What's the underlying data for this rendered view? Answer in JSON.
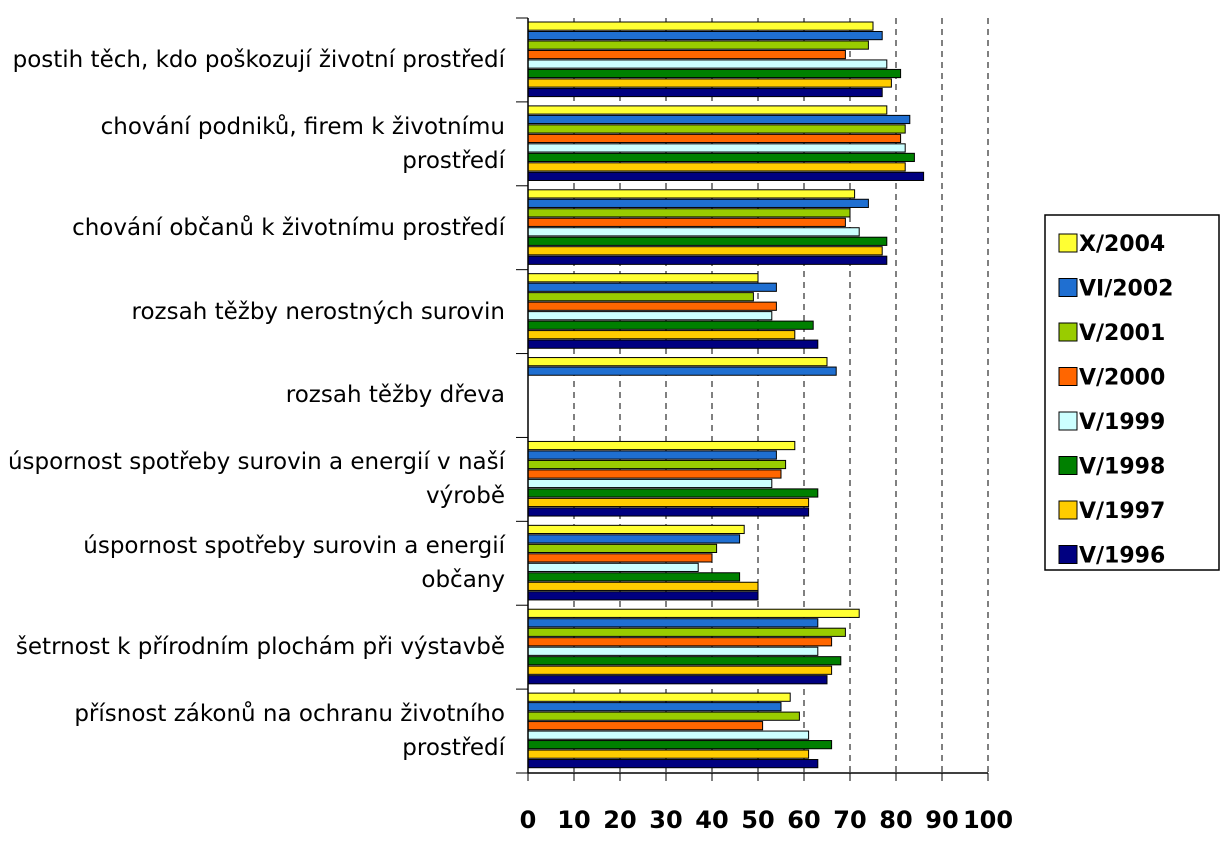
{
  "chart_data": {
    "type": "bar",
    "orientation": "horizontal",
    "categories": [
      "postih těch, kdo poškozují životní prostředí",
      "chování podniků, firem k životnímu prostředí",
      "chování občanů k životnímu prostředí",
      "rozsah těžby nerostných surovin",
      "rozsah těžby dřeva",
      "úspornost spotřeby surovin a energií v naší výrobě",
      "úspornost spotřeby surovin a energií občany",
      "šetrnost k přírodním plochám při výstavbě",
      "přísnost zákonů na ochranu životního prostředí"
    ],
    "series": [
      {
        "name": "X/2004",
        "color": "#ffff33",
        "values": [
          75,
          78,
          71,
          50,
          65,
          58,
          47,
          72,
          57
        ]
      },
      {
        "name": "VI/2002",
        "color": "#1f6fd1",
        "values": [
          77,
          83,
          74,
          54,
          67,
          54,
          46,
          63,
          55
        ]
      },
      {
        "name": "V/2001",
        "color": "#99cc00",
        "values": [
          74,
          82,
          70,
          49,
          null,
          56,
          41,
          69,
          59
        ]
      },
      {
        "name": "V/2000",
        "color": "#ff6600",
        "values": [
          69,
          81,
          69,
          54,
          null,
          55,
          40,
          66,
          51
        ]
      },
      {
        "name": "V/1999",
        "color": "#ccffff",
        "values": [
          78,
          82,
          72,
          53,
          null,
          53,
          37,
          63,
          61
        ]
      },
      {
        "name": "V/1998",
        "color": "#008000",
        "values": [
          81,
          84,
          78,
          62,
          null,
          63,
          46,
          68,
          66
        ]
      },
      {
        "name": "V/1997",
        "color": "#ffcc00",
        "values": [
          79,
          82,
          77,
          58,
          null,
          61,
          50,
          66,
          61
        ]
      },
      {
        "name": "V/1996",
        "color": "#000080",
        "values": [
          77,
          86,
          78,
          63,
          null,
          61,
          50,
          65,
          63
        ]
      }
    ],
    "xlim": [
      0,
      100
    ],
    "xticks": [
      0,
      10,
      20,
      30,
      40,
      50,
      60,
      70,
      80,
      90,
      100
    ],
    "grid": true,
    "legend": "right"
  }
}
